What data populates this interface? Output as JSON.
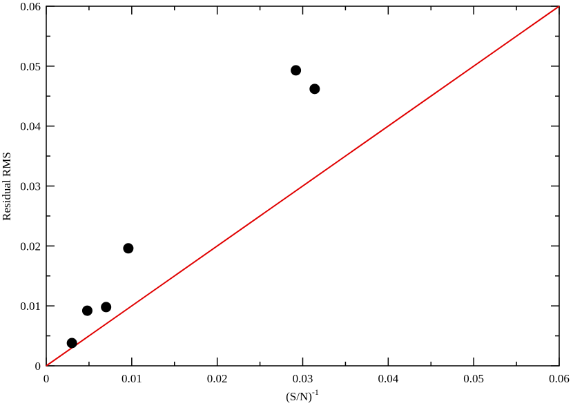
{
  "chart_data": {
    "type": "scatter",
    "xlabel": "(S/N)",
    "xlabel_superscript": "-1",
    "ylabel": "Residual RMS",
    "x": [
      0.003,
      0.0048,
      0.007,
      0.0096,
      0.0292,
      0.0314
    ],
    "series": [
      {
        "color": "#000000",
        "values": [
          0.0038,
          0.0092,
          0.0098,
          0.0196,
          0.0493,
          0.0462
        ]
      }
    ],
    "reference_line": {
      "x": [
        0,
        0.06
      ],
      "y": [
        0,
        0.06
      ],
      "color": "#e00000"
    },
    "xlim": [
      0,
      0.06
    ],
    "ylim": [
      0,
      0.06
    ],
    "xticks": [
      0,
      0.01,
      0.02,
      0.03,
      0.04,
      0.05,
      0.06
    ],
    "yticks": [
      0,
      0.01,
      0.02,
      0.03,
      0.04,
      0.05,
      0.06
    ],
    "xminorticks": [
      0.005,
      0.015,
      0.025,
      0.035,
      0.045,
      0.055
    ],
    "yminorticks": [
      0.005,
      0.015,
      0.025,
      0.035,
      0.045,
      0.055
    ]
  }
}
